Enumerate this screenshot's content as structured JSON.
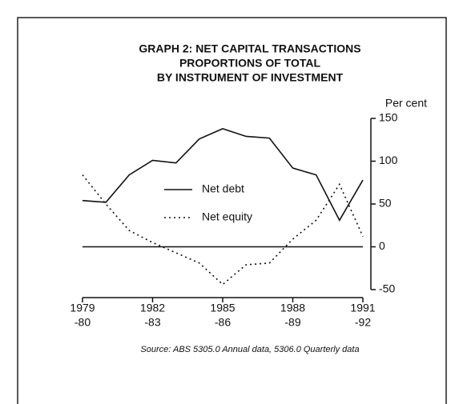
{
  "chart_data": {
    "type": "line",
    "title": [
      "GRAPH 2: NET CAPITAL TRANSACTIONS",
      "PROPORTIONS OF TOTAL",
      "BY INSTRUMENT OF INVESTMENT"
    ],
    "y_axis_label": "Per cent",
    "source": "Source: ABS 5305.0 Annual data, 5306.0 Quarterly data",
    "categories": [
      [
        "1979",
        "-80"
      ],
      null,
      null,
      [
        "1982",
        "-83"
      ],
      null,
      null,
      [
        "1985",
        "-86"
      ],
      null,
      null,
      [
        "1988",
        "-89"
      ],
      null,
      null,
      [
        "1991",
        "-92"
      ]
    ],
    "series": [
      {
        "name": "Net debt",
        "color": "#111111",
        "dash": "solid",
        "values": [
          54,
          52,
          84,
          101,
          98,
          126,
          138,
          129,
          127,
          92,
          84,
          31,
          78
        ]
      },
      {
        "name": "Net equity",
        "color": "#111111",
        "dash": "dotted",
        "values": [
          84,
          50,
          19,
          5,
          -7,
          -19,
          -44,
          -21,
          -19,
          9,
          31,
          73,
          12
        ]
      }
    ],
    "ylim": [
      -50,
      150
    ],
    "yticks": [
      -50,
      0,
      50,
      100,
      150
    ]
  }
}
